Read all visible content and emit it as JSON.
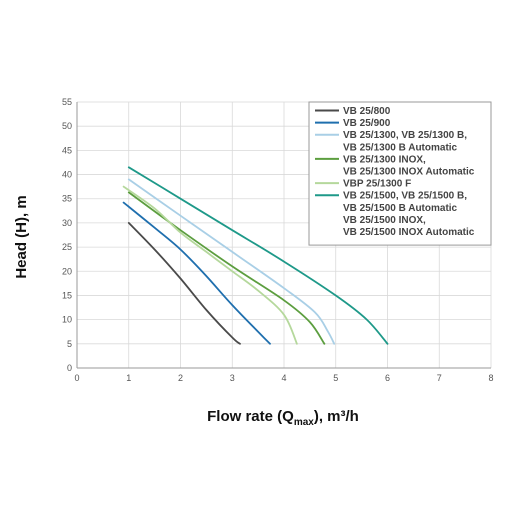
{
  "chart_data": {
    "type": "line",
    "xlabel": {
      "main": "Flow rate (Q",
      "sub": "max",
      "tail": "), m³/h"
    },
    "ylabel": "Head (H), m",
    "xlim": [
      0,
      8
    ],
    "ylim": [
      0,
      55
    ],
    "x_ticks": [
      "0",
      "1",
      "2",
      "3",
      "4",
      "5",
      "6",
      "7",
      "8"
    ],
    "y_ticks": [
      "0",
      "5",
      "10",
      "15",
      "20",
      "25",
      "30",
      "35",
      "40",
      "45",
      "50",
      "55"
    ],
    "grid": true,
    "legend_position": "top-right",
    "series": [
      {
        "color": "#4a4a4a",
        "legend": [
          "VB 25/800"
        ],
        "points": [
          [
            1.0,
            30.0
          ],
          [
            1.5,
            24.5
          ],
          [
            2.0,
            18.5
          ],
          [
            2.5,
            12.0
          ],
          [
            3.0,
            6.3
          ],
          [
            3.15,
            5.0
          ]
        ]
      },
      {
        "color": "#1f6fae",
        "legend": [
          "VB 25/900"
        ],
        "points": [
          [
            0.9,
            34.2
          ],
          [
            1.5,
            29.0
          ],
          [
            2.0,
            24.5
          ],
          [
            2.5,
            19.0
          ],
          [
            3.0,
            13.0
          ],
          [
            3.5,
            7.5
          ],
          [
            3.73,
            5.0
          ]
        ]
      },
      {
        "color": "#a9cfe6",
        "legend": [
          "VB 25/1300, VB 25/1300 B,",
          "VB 25/1300 B Automatic"
        ],
        "points": [
          [
            1.0,
            39.0
          ],
          [
            2.0,
            31.5
          ],
          [
            3.0,
            24.0
          ],
          [
            4.0,
            16.5
          ],
          [
            4.6,
            11.5
          ],
          [
            4.85,
            7.5
          ],
          [
            4.97,
            5.0
          ]
        ]
      },
      {
        "color": "#5c9e3f",
        "legend": [
          "VB 25/1300 INOX,",
          "VB 25/1300 INOX Automatic"
        ],
        "points": [
          [
            1.0,
            36.3
          ],
          [
            2.0,
            28.5
          ],
          [
            3.0,
            21.0
          ],
          [
            4.0,
            14.0
          ],
          [
            4.5,
            9.5
          ],
          [
            4.78,
            5.0
          ]
        ]
      },
      {
        "color": "#b5d89c",
        "legend": [
          "VBP 25/1300 F"
        ],
        "points": [
          [
            0.9,
            37.5
          ],
          [
            1.5,
            33.0
          ],
          [
            2.0,
            28.0
          ],
          [
            2.5,
            24.0
          ],
          [
            3.0,
            20.0
          ],
          [
            3.5,
            16.0
          ],
          [
            4.0,
            11.0
          ],
          [
            4.25,
            5.0
          ]
        ]
      },
      {
        "color": "#1e9989",
        "legend": [
          "VB 25/1500, VB 25/1500 B,",
          "VB 25/1500 B Automatic",
          "VB 25/1500 INOX,",
          "VB 25/1500 INOX Automatic"
        ],
        "points": [
          [
            1.0,
            41.5
          ],
          [
            2.0,
            35.0
          ],
          [
            3.0,
            28.5
          ],
          [
            4.0,
            22.0
          ],
          [
            5.0,
            15.0
          ],
          [
            5.6,
            10.0
          ],
          [
            6.0,
            5.0
          ]
        ]
      }
    ]
  }
}
